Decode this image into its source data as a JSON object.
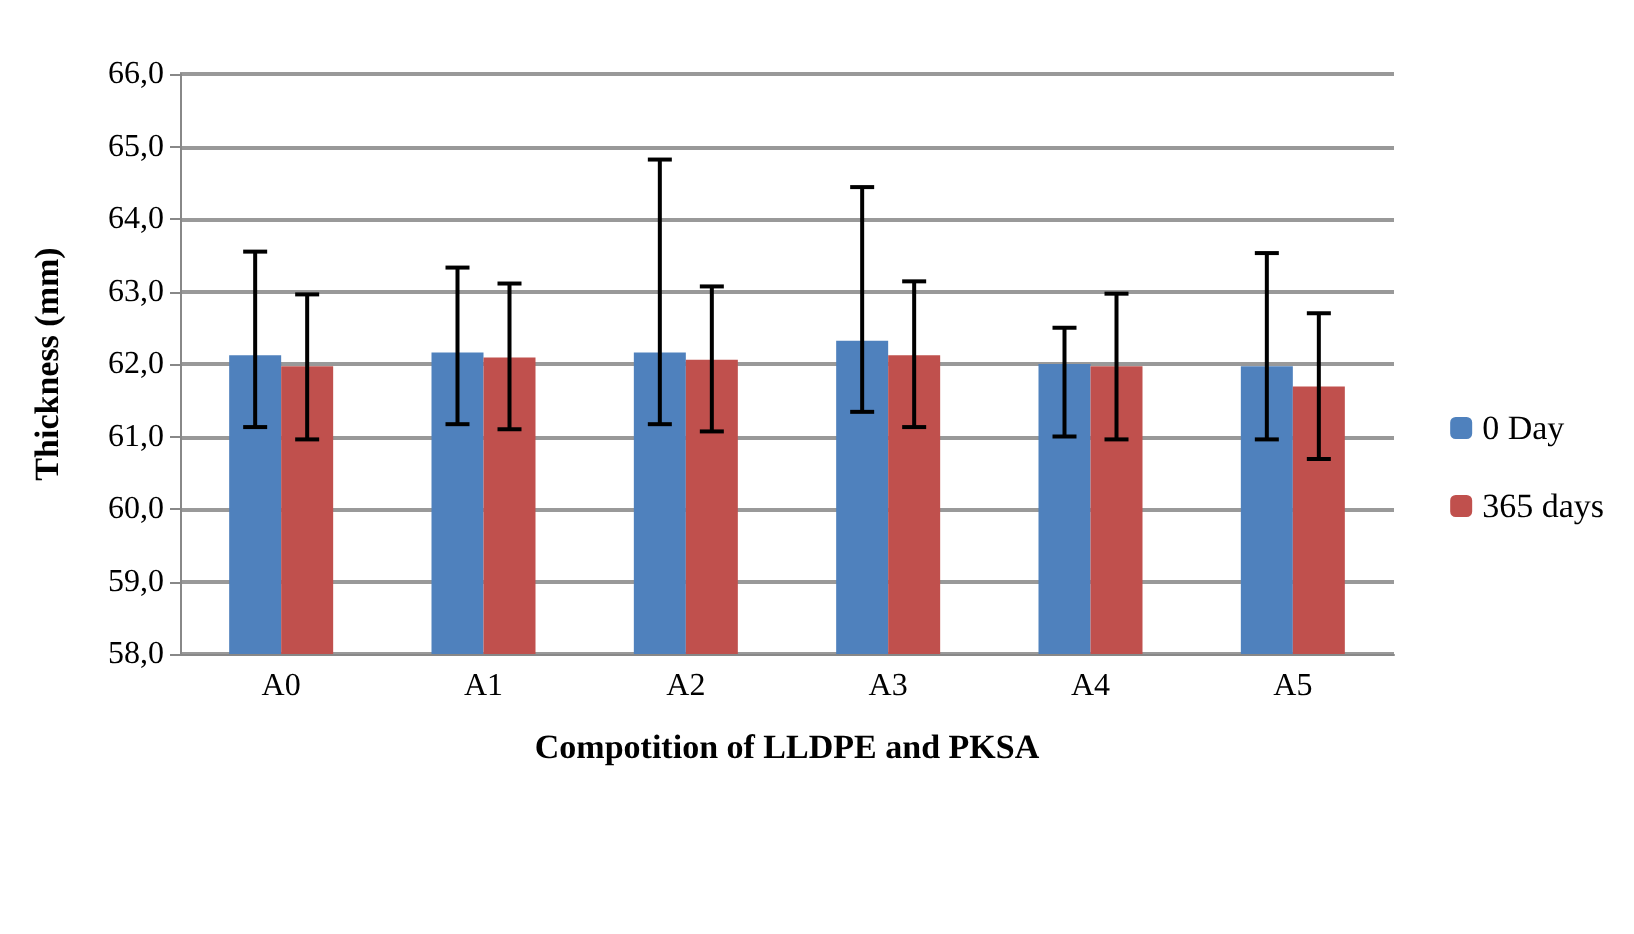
{
  "chart_data": {
    "type": "bar",
    "xlabel": "Compotition of LLDPE and PKSA",
    "ylabel": "Thickness (mm)",
    "categories": [
      "A0",
      "A1",
      "A2",
      "A3",
      "A4",
      "A5"
    ],
    "series": [
      {
        "name": "0 Day",
        "color": "#4f81bd",
        "values": [
          62.12,
          62.16,
          62.16,
          62.32,
          62.0,
          61.97
        ],
        "errors": [
          [
            61.13,
            63.55
          ],
          [
            61.17,
            63.33
          ],
          [
            61.17,
            64.82
          ],
          [
            61.34,
            64.44
          ],
          [
            61.0,
            62.5
          ],
          [
            60.96,
            63.53
          ]
        ]
      },
      {
        "name": "365 days",
        "color": "#c0504d",
        "values": [
          61.97,
          62.09,
          62.06,
          62.12,
          61.97,
          61.69
        ],
        "errors": [
          [
            60.96,
            62.96
          ],
          [
            61.1,
            63.11
          ],
          [
            61.07,
            63.07
          ],
          [
            61.13,
            63.14
          ],
          [
            60.96,
            62.97
          ],
          [
            60.69,
            62.7
          ]
        ]
      }
    ],
    "ylim": [
      58,
      66
    ],
    "yticks": [
      {
        "value": 58,
        "label": "58,0"
      },
      {
        "value": 59,
        "label": "59,0"
      },
      {
        "value": 60,
        "label": "60,0"
      },
      {
        "value": 61,
        "label": "61,0"
      },
      {
        "value": 62,
        "label": "62,0"
      },
      {
        "value": 63,
        "label": "63,0"
      },
      {
        "value": 64,
        "label": "64,0"
      },
      {
        "value": 65,
        "label": "65,0"
      },
      {
        "value": 66,
        "label": "66,0"
      }
    ],
    "grid": "y",
    "legend": "right"
  }
}
